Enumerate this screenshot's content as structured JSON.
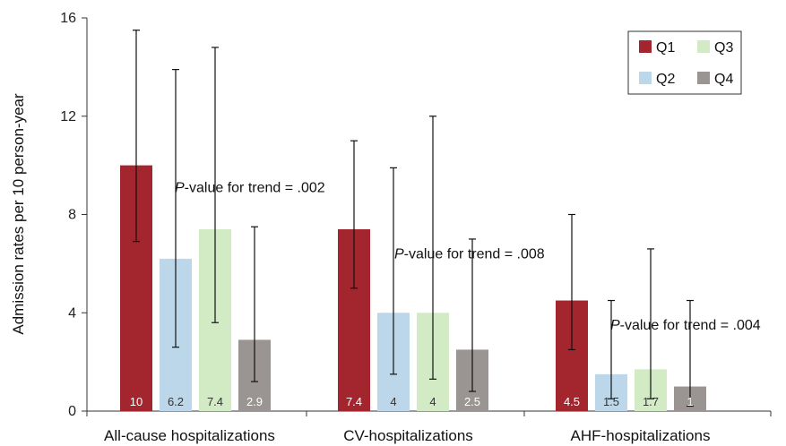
{
  "chart_data": {
    "type": "bar",
    "ylabel": "Admission rates per 10 person-year",
    "xlabel": "",
    "ylim": [
      0,
      16
    ],
    "yticks": [
      0,
      4,
      8,
      12,
      16
    ],
    "grid": false,
    "legend_position": "top-right",
    "categories": [
      "All-cause hospitalizations",
      "CV-hospitalizations",
      "AHF-hospitalizations"
    ],
    "series": [
      {
        "name": "Q1",
        "color": "#a3262f",
        "label_color": "#ffffff",
        "values": [
          10,
          7.4,
          4.5
        ],
        "labels": [
          "10",
          "7.4",
          "4.5"
        ],
        "err_low": [
          6.9,
          5.0,
          2.5
        ],
        "err_high": [
          15.5,
          11.0,
          8.0
        ]
      },
      {
        "name": "Q2",
        "color": "#bdd7ea",
        "label_color": "#333333",
        "values": [
          6.2,
          4,
          1.5
        ],
        "labels": [
          "6.2",
          "4",
          "1.5"
        ],
        "err_low": [
          2.6,
          1.5,
          0.5
        ],
        "err_high": [
          13.9,
          9.9,
          4.5
        ]
      },
      {
        "name": "Q3",
        "color": "#d3ebc4",
        "label_color": "#333333",
        "values": [
          7.4,
          4,
          1.7
        ],
        "labels": [
          "7.4",
          "4",
          "1.7"
        ],
        "err_low": [
          3.6,
          1.3,
          0.5
        ],
        "err_high": [
          14.8,
          12.0,
          6.6
        ]
      },
      {
        "name": "Q4",
        "color": "#9a9592",
        "label_color": "#ffffff",
        "values": [
          2.9,
          2.5,
          1
        ],
        "labels": [
          "2.9",
          "2.5",
          "1"
        ],
        "err_low": [
          1.2,
          0.8,
          0.2
        ],
        "err_high": [
          7.5,
          7.0,
          4.5
        ]
      }
    ],
    "annotations": [
      {
        "italic": "P",
        "text": "-value for trend = .002",
        "category": 0,
        "y": 9.1
      },
      {
        "italic": "P",
        "text": "-value for trend = .008",
        "category": 1,
        "y": 6.4
      },
      {
        "italic": "P",
        "text": "-value for trend = .004",
        "category": 2,
        "y": 3.5
      }
    ]
  }
}
